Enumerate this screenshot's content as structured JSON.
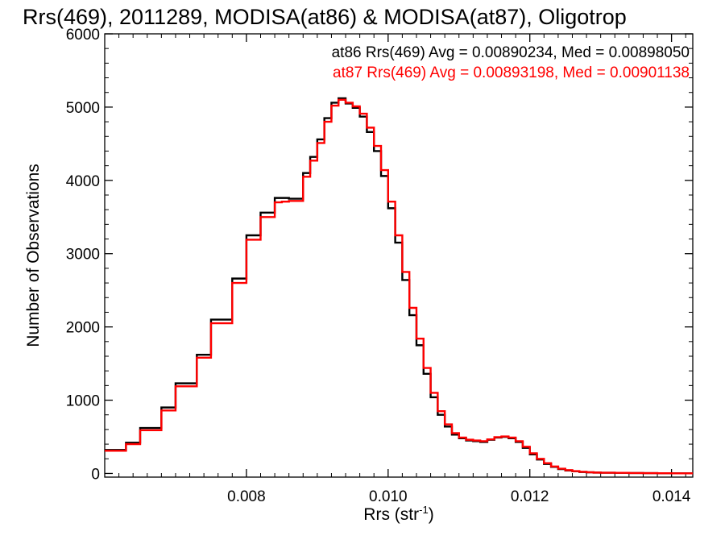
{
  "chart_data": {
    "type": "line",
    "title": "Rrs(469), 2011289, MODISA(at86) & MODISA(at87), Oligotrop",
    "xlabel": "Rrs (str",
    "xlabel_sup": "-1",
    "xlabel_end": ")",
    "ylabel": "Number of Observations",
    "xlim": [
      0.006,
      0.0143
    ],
    "ylim": [
      -50,
      6000
    ],
    "xticks": [
      "0.008",
      "0.010",
      "0.012",
      "0.014"
    ],
    "xtick_values": [
      0.008,
      0.01,
      0.012,
      0.014
    ],
    "yticks": [
      "0",
      "1000",
      "2000",
      "3000",
      "4000",
      "5000",
      "6000"
    ],
    "ytick_values": [
      0,
      1000,
      2000,
      3000,
      4000,
      5000,
      6000
    ],
    "grid": false,
    "annotations": [
      {
        "text": "at86 Rrs(469) Avg = 0.00890234, Med = 0.00898050",
        "color": "#000000"
      },
      {
        "text": "at87 Rrs(469) Avg = 0.00893198, Med = 0.00901138",
        "color": "#ff0000"
      }
    ],
    "series": [
      {
        "color": "#000000",
        "x": [
          0.006,
          0.0063,
          0.0065,
          0.0068,
          0.007,
          0.0073,
          0.0075,
          0.0078,
          0.008,
          0.0082,
          0.0084,
          0.0085,
          0.0086,
          0.0088,
          0.0089,
          0.009,
          0.0091,
          0.0092,
          0.0093,
          0.0094,
          0.0095,
          0.0096,
          0.0097,
          0.0098,
          0.0099,
          0.01,
          0.0101,
          0.0102,
          0.0103,
          0.0104,
          0.0105,
          0.0106,
          0.0107,
          0.0108,
          0.0109,
          0.011,
          0.0111,
          0.0112,
          0.0113,
          0.0114,
          0.0115,
          0.0116,
          0.0117,
          0.0118,
          0.0119,
          0.012,
          0.0121,
          0.0122,
          0.0123,
          0.0124,
          0.0125,
          0.0126,
          0.0127,
          0.0128,
          0.0129,
          0.013,
          0.0132,
          0.0134,
          0.0136,
          0.0138,
          0.014,
          0.0143
        ],
        "y": [
          320,
          420,
          620,
          900,
          1230,
          1620,
          2100,
          2660,
          3250,
          3560,
          3760,
          3760,
          3750,
          4100,
          4320,
          4560,
          4850,
          5060,
          5120,
          5050,
          4990,
          4870,
          4660,
          4400,
          4060,
          3620,
          3150,
          2640,
          2160,
          1750,
          1360,
          1040,
          800,
          640,
          530,
          480,
          450,
          440,
          430,
          460,
          490,
          500,
          480,
          430,
          350,
          260,
          190,
          130,
          90,
          60,
          40,
          30,
          20,
          15,
          12,
          10,
          8,
          6,
          4,
          3,
          2,
          2
        ]
      },
      {
        "color": "#ff0000",
        "x": [
          0.006,
          0.0063,
          0.0065,
          0.0068,
          0.007,
          0.0073,
          0.0075,
          0.0078,
          0.008,
          0.0082,
          0.0084,
          0.0085,
          0.0086,
          0.0088,
          0.0089,
          0.009,
          0.0091,
          0.0092,
          0.0093,
          0.0094,
          0.0095,
          0.0096,
          0.0097,
          0.0098,
          0.0099,
          0.01,
          0.0101,
          0.0102,
          0.0103,
          0.0104,
          0.0105,
          0.0106,
          0.0107,
          0.0108,
          0.0109,
          0.011,
          0.0111,
          0.0112,
          0.0113,
          0.0114,
          0.0115,
          0.0116,
          0.0117,
          0.0118,
          0.0119,
          0.012,
          0.0121,
          0.0122,
          0.0123,
          0.0124,
          0.0125,
          0.0126,
          0.0127,
          0.0128,
          0.0129,
          0.013,
          0.0132,
          0.0134,
          0.0136,
          0.0138,
          0.014,
          0.0143
        ],
        "y": [
          310,
          400,
          590,
          860,
          1190,
          1580,
          2050,
          2600,
          3190,
          3500,
          3700,
          3710,
          3720,
          4050,
          4270,
          4510,
          4800,
          5020,
          5100,
          5060,
          5010,
          4910,
          4720,
          4470,
          4140,
          3710,
          3250,
          2750,
          2260,
          1840,
          1440,
          1100,
          850,
          670,
          550,
          490,
          460,
          450,
          440,
          465,
          495,
          505,
          490,
          440,
          365,
          275,
          200,
          140,
          95,
          65,
          45,
          32,
          22,
          16,
          12,
          10,
          8,
          6,
          4,
          3,
          2,
          2
        ]
      }
    ]
  }
}
